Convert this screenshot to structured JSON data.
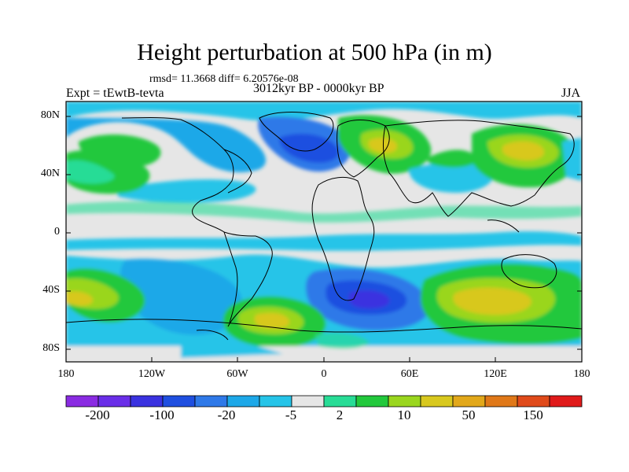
{
  "title": "Height perturbation at 500 hPa (in m)",
  "stats": "rmsd= 11.3668 diff= 6.20576e-08",
  "experiment": "Expt = tEwtB-tevta",
  "period": "3012kyr BP - 0000kyr BP",
  "season": "JJA",
  "lat_labels": [
    "80N",
    "40N",
    "0",
    "40S",
    "80S"
  ],
  "lon_labels": [
    "180",
    "120W",
    "60W",
    "0",
    "60E",
    "120E",
    "180"
  ],
  "colorbar": {
    "colors": [
      "#8a2be2",
      "#6a2ee8",
      "#3a32e0",
      "#1f4fe0",
      "#2f79e8",
      "#1da8e8",
      "#26c4e8",
      "#e6e6e6",
      "#28dc96",
      "#22c83c",
      "#9ad61e",
      "#d8c81e",
      "#e2a81a",
      "#e07818",
      "#e04a1a",
      "#e01a1a"
    ],
    "labels": [
      "-200",
      "-100",
      "-20",
      "-5",
      "2",
      "10",
      "50",
      "150"
    ]
  }
}
